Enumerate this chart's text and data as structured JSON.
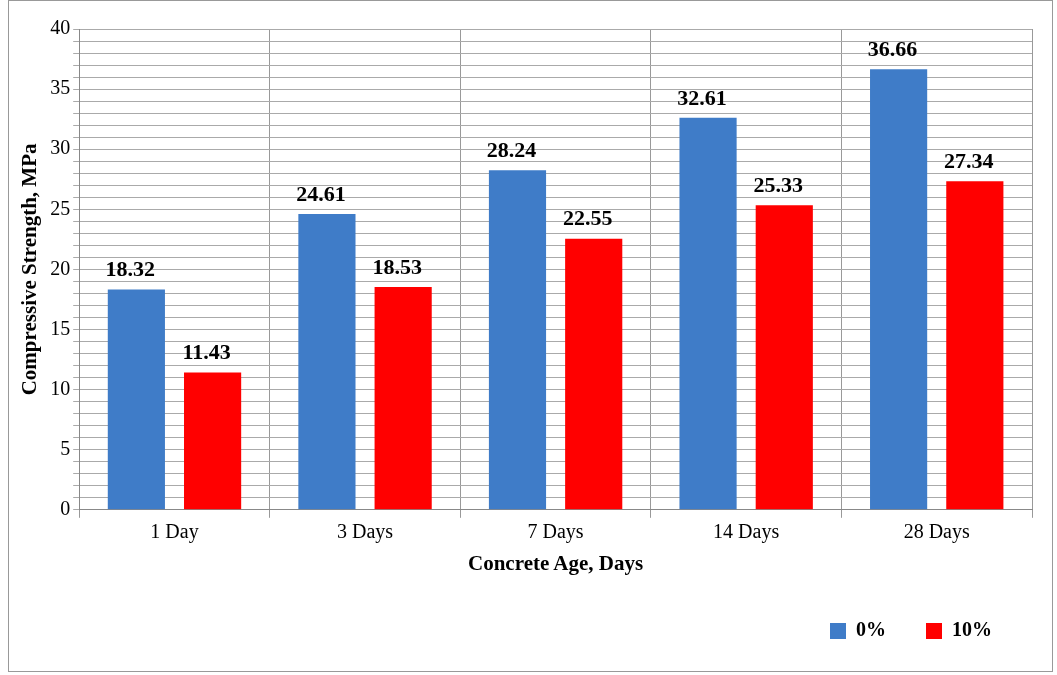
{
  "chart_data": {
    "type": "bar",
    "xlabel": "Concrete Age, Days",
    "ylabel": "Compressive Strength, MPa",
    "categories": [
      "1 Day",
      "3 Days",
      "7 Days",
      "14 Days",
      "28 Days"
    ],
    "series": [
      {
        "name": "0%",
        "color": "#3f7cc8",
        "values": [
          18.32,
          24.61,
          28.24,
          32.61,
          36.66
        ]
      },
      {
        "name": "10%",
        "color": "#ff0000",
        "values": [
          11.43,
          18.53,
          22.55,
          25.33,
          27.34
        ]
      }
    ],
    "ylim": [
      0,
      40
    ],
    "yticks": [
      0,
      {
        "value": 1,
        "label": null
      },
      {
        "value": 2,
        "label": null
      },
      {
        "value": 3,
        "label": null
      },
      {
        "value": 4,
        "label": null
      },
      5,
      {
        "value": 6,
        "label": null
      },
      {
        "value": 7,
        "label": null
      },
      {
        "value": 8,
        "label": null
      },
      {
        "value": 9,
        "label": null
      },
      10,
      {
        "value": 11,
        "label": null
      },
      {
        "value": 12,
        "label": null
      },
      {
        "value": 13,
        "label": null
      },
      {
        "value": 14,
        "label": null
      },
      15,
      {
        "value": 16,
        "label": null
      },
      {
        "value": 17,
        "label": null
      },
      {
        "value": 18,
        "label": null
      },
      {
        "value": 19,
        "label": null
      },
      20,
      {
        "value": 21,
        "label": null
      },
      {
        "value": 22,
        "label": null
      },
      {
        "value": 23,
        "label": null
      },
      {
        "value": 24,
        "label": null
      },
      25,
      {
        "value": 26,
        "label": null
      },
      {
        "value": 27,
        "label": null
      },
      {
        "value": 28,
        "label": null
      },
      {
        "value": 29,
        "label": null
      },
      30,
      {
        "value": 31,
        "label": null
      },
      {
        "value": 32,
        "label": null
      },
      {
        "value": 33,
        "label": null
      },
      {
        "value": 34,
        "label": null
      },
      35,
      {
        "value": 36,
        "label": null
      },
      {
        "value": 37,
        "label": null
      },
      {
        "value": 38,
        "label": null
      },
      {
        "value": 39,
        "label": null
      },
      40
    ],
    "grid": true,
    "legend": "bottom right",
    "data_labels": true
  }
}
